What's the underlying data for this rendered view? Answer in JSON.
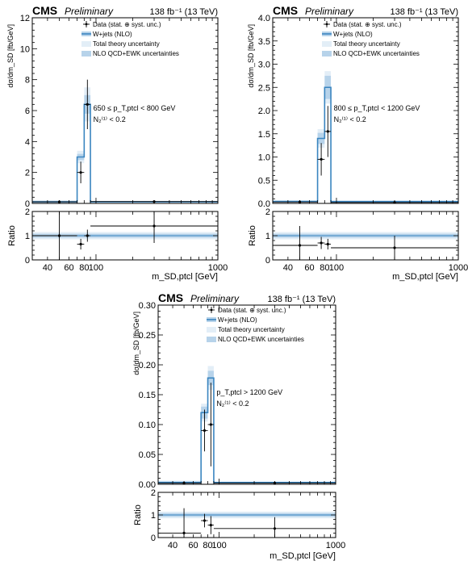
{
  "chart_data": [
    {
      "type": "histogram",
      "panel": "top-left",
      "experiment": "CMS",
      "status": "Preliminary",
      "lumi_label": "138 fb⁻¹ (13 TeV)",
      "ylabel": "dσ/dm_SD [fb/GeV]",
      "xlabel": "m_SD,ptcl [GeV]",
      "ratio_label": "Ratio",
      "ylim": [
        0,
        12
      ],
      "yticks": [
        0,
        2,
        4,
        6,
        8,
        10,
        12
      ],
      "ratio_ylim": [
        0,
        2
      ],
      "ratio_yticks": [
        0,
        1,
        2
      ],
      "xlim": [
        30,
        1000
      ],
      "xscale": "log",
      "xticks": [
        40,
        60,
        80,
        100,
        1000
      ],
      "annotation_lines": [
        "650 ≤ p_T,ptcl < 800 GeV",
        "N₂⁽¹⁾ < 0.2"
      ],
      "bins": [
        [
          30,
          70
        ],
        [
          70,
          80
        ],
        [
          80,
          90
        ],
        [
          90,
          1000
        ]
      ],
      "prediction": [
        0.1,
        3.0,
        6.4,
        0.1
      ],
      "qcd_ewk_band": [
        0.06,
        0.2,
        0.6,
        0.02
      ],
      "total_band": [
        0.1,
        0.4,
        1.1,
        0.04
      ],
      "data": [
        {
          "x": 50,
          "xlo": 30,
          "xhi": 70,
          "y": 0.1,
          "yerr": 0.05
        },
        {
          "x": 75,
          "xlo": 70,
          "xhi": 80,
          "y": 2.0,
          "yerr": 0.7
        },
        {
          "x": 85,
          "xlo": 80,
          "xhi": 90,
          "y": 6.4,
          "yerr": 1.6
        },
        {
          "x": 300,
          "xlo": 90,
          "xhi": 1000,
          "y": 0.12,
          "yerr": 0.02
        }
      ],
      "ratio_data": [
        {
          "x": 50,
          "xlo": 30,
          "xhi": 70,
          "y": 1.0,
          "yerr": 1.0
        },
        {
          "x": 75,
          "xlo": 70,
          "xhi": 80,
          "y": 0.65,
          "yerr": 0.22
        },
        {
          "x": 85,
          "xlo": 80,
          "xhi": 90,
          "y": 1.0,
          "yerr": 0.25
        },
        {
          "x": 300,
          "xlo": 90,
          "xhi": 1000,
          "y": 1.4,
          "yerr": 0.7
        }
      ],
      "ratio_total_band": [
        0.15,
        0.15,
        0.15,
        0.15
      ],
      "ratio_qcd_band": [
        0.08,
        0.08,
        0.08,
        0.08
      ],
      "legend": [
        "Data (stat. ⊕ syst. unc.)",
        "W+jets (NLO)",
        "Total theory uncertainty",
        "NLO QCD+EWK uncertainties"
      ]
    },
    {
      "type": "histogram",
      "panel": "top-right",
      "experiment": "CMS",
      "status": "Preliminary",
      "lumi_label": "138 fb⁻¹ (13 TeV)",
      "ylabel": "dσ/dm_SD [fb/GeV]",
      "xlabel": "m_SD,ptcl [GeV]",
      "ratio_label": "Ratio",
      "ylim": [
        0,
        4
      ],
      "yticks": [
        0,
        0.5,
        1.0,
        1.5,
        2.0,
        2.5,
        3.0,
        3.5,
        4.0
      ],
      "ratio_ylim": [
        0,
        2
      ],
      "ratio_yticks": [
        0,
        1,
        2
      ],
      "xlim": [
        30,
        1000
      ],
      "xscale": "log",
      "xticks": [
        40,
        60,
        80,
        100,
        1000
      ],
      "annotation_lines": [
        "800 ≤ p_T,ptcl < 1200 GeV",
        "N₂⁽¹⁾ < 0.2"
      ],
      "bins": [
        [
          30,
          70
        ],
        [
          70,
          80
        ],
        [
          80,
          90
        ],
        [
          90,
          1000
        ]
      ],
      "prediction": [
        0.04,
        1.4,
        2.5,
        0.04
      ],
      "qcd_ewk_band": [
        0.02,
        0.12,
        0.25,
        0.01
      ],
      "total_band": [
        0.03,
        0.2,
        0.35,
        0.02
      ],
      "data": [
        {
          "x": 50,
          "xlo": 30,
          "xhi": 70,
          "y": 0.03,
          "yerr": 0.03
        },
        {
          "x": 75,
          "xlo": 70,
          "xhi": 80,
          "y": 0.95,
          "yerr": 0.35
        },
        {
          "x": 85,
          "xlo": 80,
          "xhi": 90,
          "y": 1.55,
          "yerr": 0.55
        },
        {
          "x": 300,
          "xlo": 90,
          "xhi": 1000,
          "y": 0.02,
          "yerr": 0.01
        }
      ],
      "ratio_data": [
        {
          "x": 50,
          "xlo": 30,
          "xhi": 70,
          "y": 0.6,
          "yerr": 0.8
        },
        {
          "x": 75,
          "xlo": 70,
          "xhi": 80,
          "y": 0.7,
          "yerr": 0.25
        },
        {
          "x": 85,
          "xlo": 80,
          "xhi": 90,
          "y": 0.65,
          "yerr": 0.22
        },
        {
          "x": 300,
          "xlo": 90,
          "xhi": 1000,
          "y": 0.5,
          "yerr": 0.5
        }
      ],
      "ratio_total_band": [
        0.15,
        0.15,
        0.15,
        0.15
      ],
      "ratio_qcd_band": [
        0.08,
        0.08,
        0.08,
        0.08
      ],
      "legend": [
        "Data (stat. ⊕ syst. unc.)",
        "W+jets (NLO)",
        "Total theory uncertainty",
        "NLO QCD+EWK uncertainties"
      ]
    },
    {
      "type": "histogram",
      "panel": "bottom",
      "experiment": "CMS",
      "status": "Preliminary",
      "lumi_label": "138 fb⁻¹ (13 TeV)",
      "ylabel": "dσ/dm_SD [fb/GeV]",
      "xlabel": "m_SD,ptcl [GeV]",
      "ratio_label": "Ratio",
      "ylim": [
        0,
        0.3
      ],
      "yticks": [
        0,
        0.05,
        0.1,
        0.15,
        0.2,
        0.25,
        0.3
      ],
      "ratio_ylim": [
        0,
        2
      ],
      "ratio_yticks": [
        0,
        1,
        2
      ],
      "xlim": [
        30,
        1000
      ],
      "xscale": "log",
      "xticks": [
        40,
        60,
        80,
        100,
        1000
      ],
      "annotation_lines": [
        "p_T,ptcl > 1200 GeV",
        "N₂⁽¹⁾ < 0.2"
      ],
      "bins": [
        [
          30,
          70
        ],
        [
          70,
          80
        ],
        [
          80,
          90
        ],
        [
          90,
          1000
        ]
      ],
      "prediction": [
        0.003,
        0.12,
        0.178,
        0.003
      ],
      "qcd_ewk_band": [
        0.002,
        0.01,
        0.012,
        0.001
      ],
      "total_band": [
        0.003,
        0.015,
        0.02,
        0.002
      ],
      "data": [
        {
          "x": 50,
          "xlo": 30,
          "xhi": 70,
          "y": 0.002,
          "yerr": 0.002
        },
        {
          "x": 75,
          "xlo": 70,
          "xhi": 80,
          "y": 0.09,
          "yerr": 0.035
        },
        {
          "x": 85,
          "xlo": 80,
          "xhi": 90,
          "y": 0.1,
          "yerr": 0.07
        },
        {
          "x": 300,
          "xlo": 90,
          "xhi": 1000,
          "y": 0.002,
          "yerr": 0.001
        }
      ],
      "ratio_data": [
        {
          "x": 50,
          "xlo": 30,
          "xhi": 70,
          "y": 0.2,
          "yerr": 1.1
        },
        {
          "x": 75,
          "xlo": 70,
          "xhi": 80,
          "y": 0.75,
          "yerr": 0.3
        },
        {
          "x": 85,
          "xlo": 80,
          "xhi": 90,
          "y": 0.55,
          "yerr": 0.4
        },
        {
          "x": 300,
          "xlo": 90,
          "xhi": 1000,
          "y": 0.4,
          "yerr": 0.5
        }
      ],
      "ratio_total_band": [
        0.15,
        0.15,
        0.15,
        0.15
      ],
      "ratio_qcd_band": [
        0.08,
        0.08,
        0.08,
        0.08
      ],
      "legend": [
        "Data (stat. ⊕ syst. unc.)",
        "W+jets (NLO)",
        "Total theory uncertainty",
        "NLO QCD+EWK uncertainties"
      ]
    }
  ],
  "colors": {
    "prediction_line": "#3a85c0",
    "total_band": "#e3eef7",
    "qcd_ewk_band": "#b7d3ea",
    "data": "#000000"
  }
}
